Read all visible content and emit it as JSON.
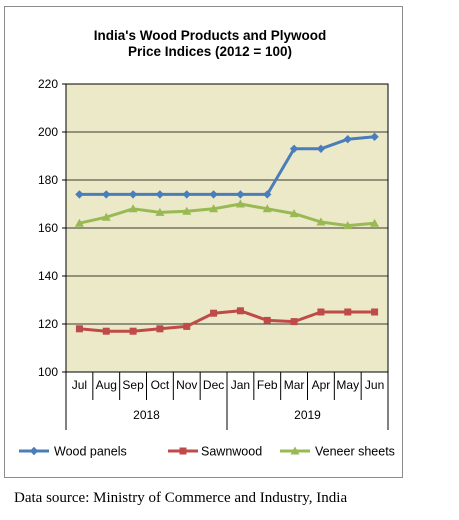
{
  "chart_data": {
    "type": "line",
    "title_lines": [
      "India's Wood Products and Plywood",
      "Price Indices (2012 = 100)"
    ],
    "x": [
      "Jul",
      "Aug",
      "Sep",
      "Oct",
      "Nov",
      "Dec",
      "Jan",
      "Feb",
      "Mar",
      "Apr",
      "May",
      "Jun"
    ],
    "year_groups": [
      {
        "label": "2018",
        "start": 0,
        "end": 5
      },
      {
        "label": "2019",
        "start": 6,
        "end": 11
      }
    ],
    "ylim": [
      100,
      220
    ],
    "yticks": [
      100,
      120,
      140,
      160,
      180,
      200,
      220
    ],
    "grid": true,
    "plot_background": "#ece9c8",
    "legend_position": "bottom",
    "series": [
      {
        "name": "Wood panels",
        "color": "#4a7ebb",
        "marker": "diamond",
        "values": [
          174,
          174,
          174,
          174,
          174,
          174,
          174,
          174,
          193,
          193,
          197,
          198
        ]
      },
      {
        "name": "Sawnwood",
        "color": "#be4b48",
        "marker": "square",
        "values": [
          118,
          117,
          117,
          118,
          119,
          124.5,
          125.5,
          121.5,
          121,
          125,
          125,
          125
        ]
      },
      {
        "name": "Veneer sheets",
        "color": "#98b954",
        "marker": "triangle",
        "values": [
          162,
          164.5,
          168,
          166.5,
          167,
          168,
          170,
          168,
          166,
          162.5,
          161,
          162
        ]
      }
    ]
  },
  "source_note": "Data source: Ministry of Commerce and Industry, India"
}
